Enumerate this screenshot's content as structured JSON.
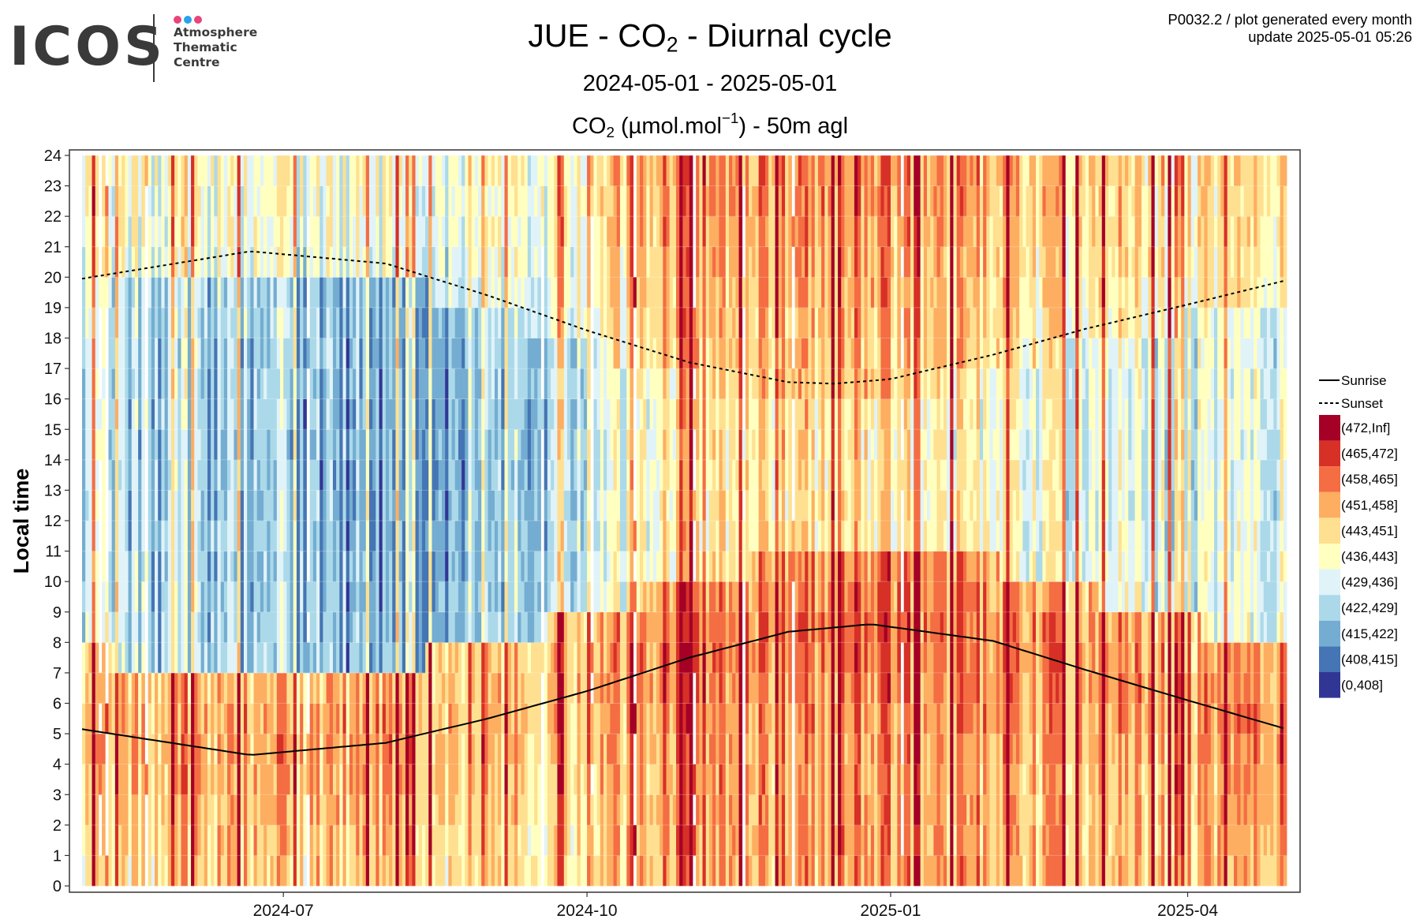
{
  "logo": {
    "wordmark": "ICOS",
    "line1": "Atmosphere",
    "line2": "Thematic",
    "line3": "Centre",
    "dot_colors": [
      "#e8457a",
      "#29a3e8",
      "#e8457a"
    ]
  },
  "header": {
    "station": "JUE",
    "sep": " - ",
    "gas": "CO",
    "gas_sub": "2",
    "suffix": " - Diurnal cycle",
    "date_range": "2024-05-01 - 2025-05-01",
    "unit_gas": "CO",
    "unit_gas_sub": "2",
    "unit_open": " (µmol.mol",
    "unit_exp": "−1",
    "unit_close": ") - 50m agl",
    "note_line1": "P0032.2 / plot generated every month",
    "note_line2": "update  2025-05-01 05:26"
  },
  "chart_data": {
    "type": "heatmap",
    "ylabel": "Local time",
    "x_range": [
      "2024-05-01",
      "2025-05-01"
    ],
    "x_ticks": [
      "2024-07",
      "2024-10",
      "2025-01",
      "2025-04"
    ],
    "x_tick_dates": [
      "2024-07-01",
      "2024-10-01",
      "2025-01-01",
      "2025-04-01"
    ],
    "y_range": [
      0,
      24
    ],
    "y_ticks": [
      0,
      1,
      2,
      3,
      4,
      5,
      6,
      7,
      8,
      9,
      10,
      11,
      12,
      13,
      14,
      15,
      16,
      17,
      18,
      19,
      20,
      21,
      22,
      23,
      24
    ],
    "grid": true,
    "legend_position": "right",
    "legend_lines": [
      {
        "name": "Sunrise",
        "style": "solid"
      },
      {
        "name": "Sunset",
        "style": "dashed"
      }
    ],
    "bins": [
      {
        "label": "(472,Inf]",
        "color": "#a50026"
      },
      {
        "label": "(465,472]",
        "color": "#d73027"
      },
      {
        "label": "(458,465]",
        "color": "#f46d43"
      },
      {
        "label": "(451,458]",
        "color": "#fdae61"
      },
      {
        "label": "(443,451]",
        "color": "#fee090"
      },
      {
        "label": "(436,443]",
        "color": "#ffffbf"
      },
      {
        "label": "(429,436]",
        "color": "#e0f3f8"
      },
      {
        "label": "(422,429]",
        "color": "#abd9e9"
      },
      {
        "label": "(415,422]",
        "color": "#74add1"
      },
      {
        "label": "(408,415]",
        "color": "#4575b4"
      },
      {
        "label": "(0,408]",
        "color": "#313695"
      }
    ],
    "sunrise_curve": {
      "dates": [
        "2024-05-01",
        "2024-06-21",
        "2024-08-01",
        "2024-09-01",
        "2024-10-01",
        "2024-11-01",
        "2024-12-01",
        "2024-12-26",
        "2025-02-01",
        "2025-03-01",
        "2025-04-01",
        "2025-05-01"
      ],
      "hours": [
        5.15,
        4.3,
        4.7,
        5.5,
        6.4,
        7.5,
        8.35,
        8.6,
        8.05,
        7.1,
        6.1,
        5.15
      ]
    },
    "sunset_curve": {
      "dates": [
        "2024-05-01",
        "2024-06-21",
        "2024-08-01",
        "2024-09-01",
        "2024-10-01",
        "2024-11-01",
        "2024-12-01",
        "2024-12-15",
        "2025-01-01",
        "2025-02-01",
        "2025-03-01",
        "2025-04-01",
        "2025-05-01"
      ],
      "hours": [
        19.95,
        20.85,
        20.45,
        19.4,
        18.25,
        17.2,
        16.55,
        16.5,
        16.65,
        17.45,
        18.3,
        19.1,
        19.9
      ]
    },
    "daily_mean_ppm_profile": {
      "dates": [
        "2024-05-01",
        "2024-06-01",
        "2024-07-01",
        "2024-08-01",
        "2024-09-01",
        "2024-10-01",
        "2024-11-01",
        "2024-12-01",
        "2025-01-01",
        "2025-02-01",
        "2025-03-01",
        "2025-04-01",
        "2025-05-01"
      ],
      "night_ppm": [
        448,
        447,
        447,
        450,
        446,
        447,
        458,
        455,
        456,
        452,
        451,
        450,
        455
      ],
      "day_ppm": [
        430,
        423,
        421,
        416,
        421,
        430,
        446,
        446,
        443,
        437,
        434,
        432,
        433
      ]
    }
  }
}
